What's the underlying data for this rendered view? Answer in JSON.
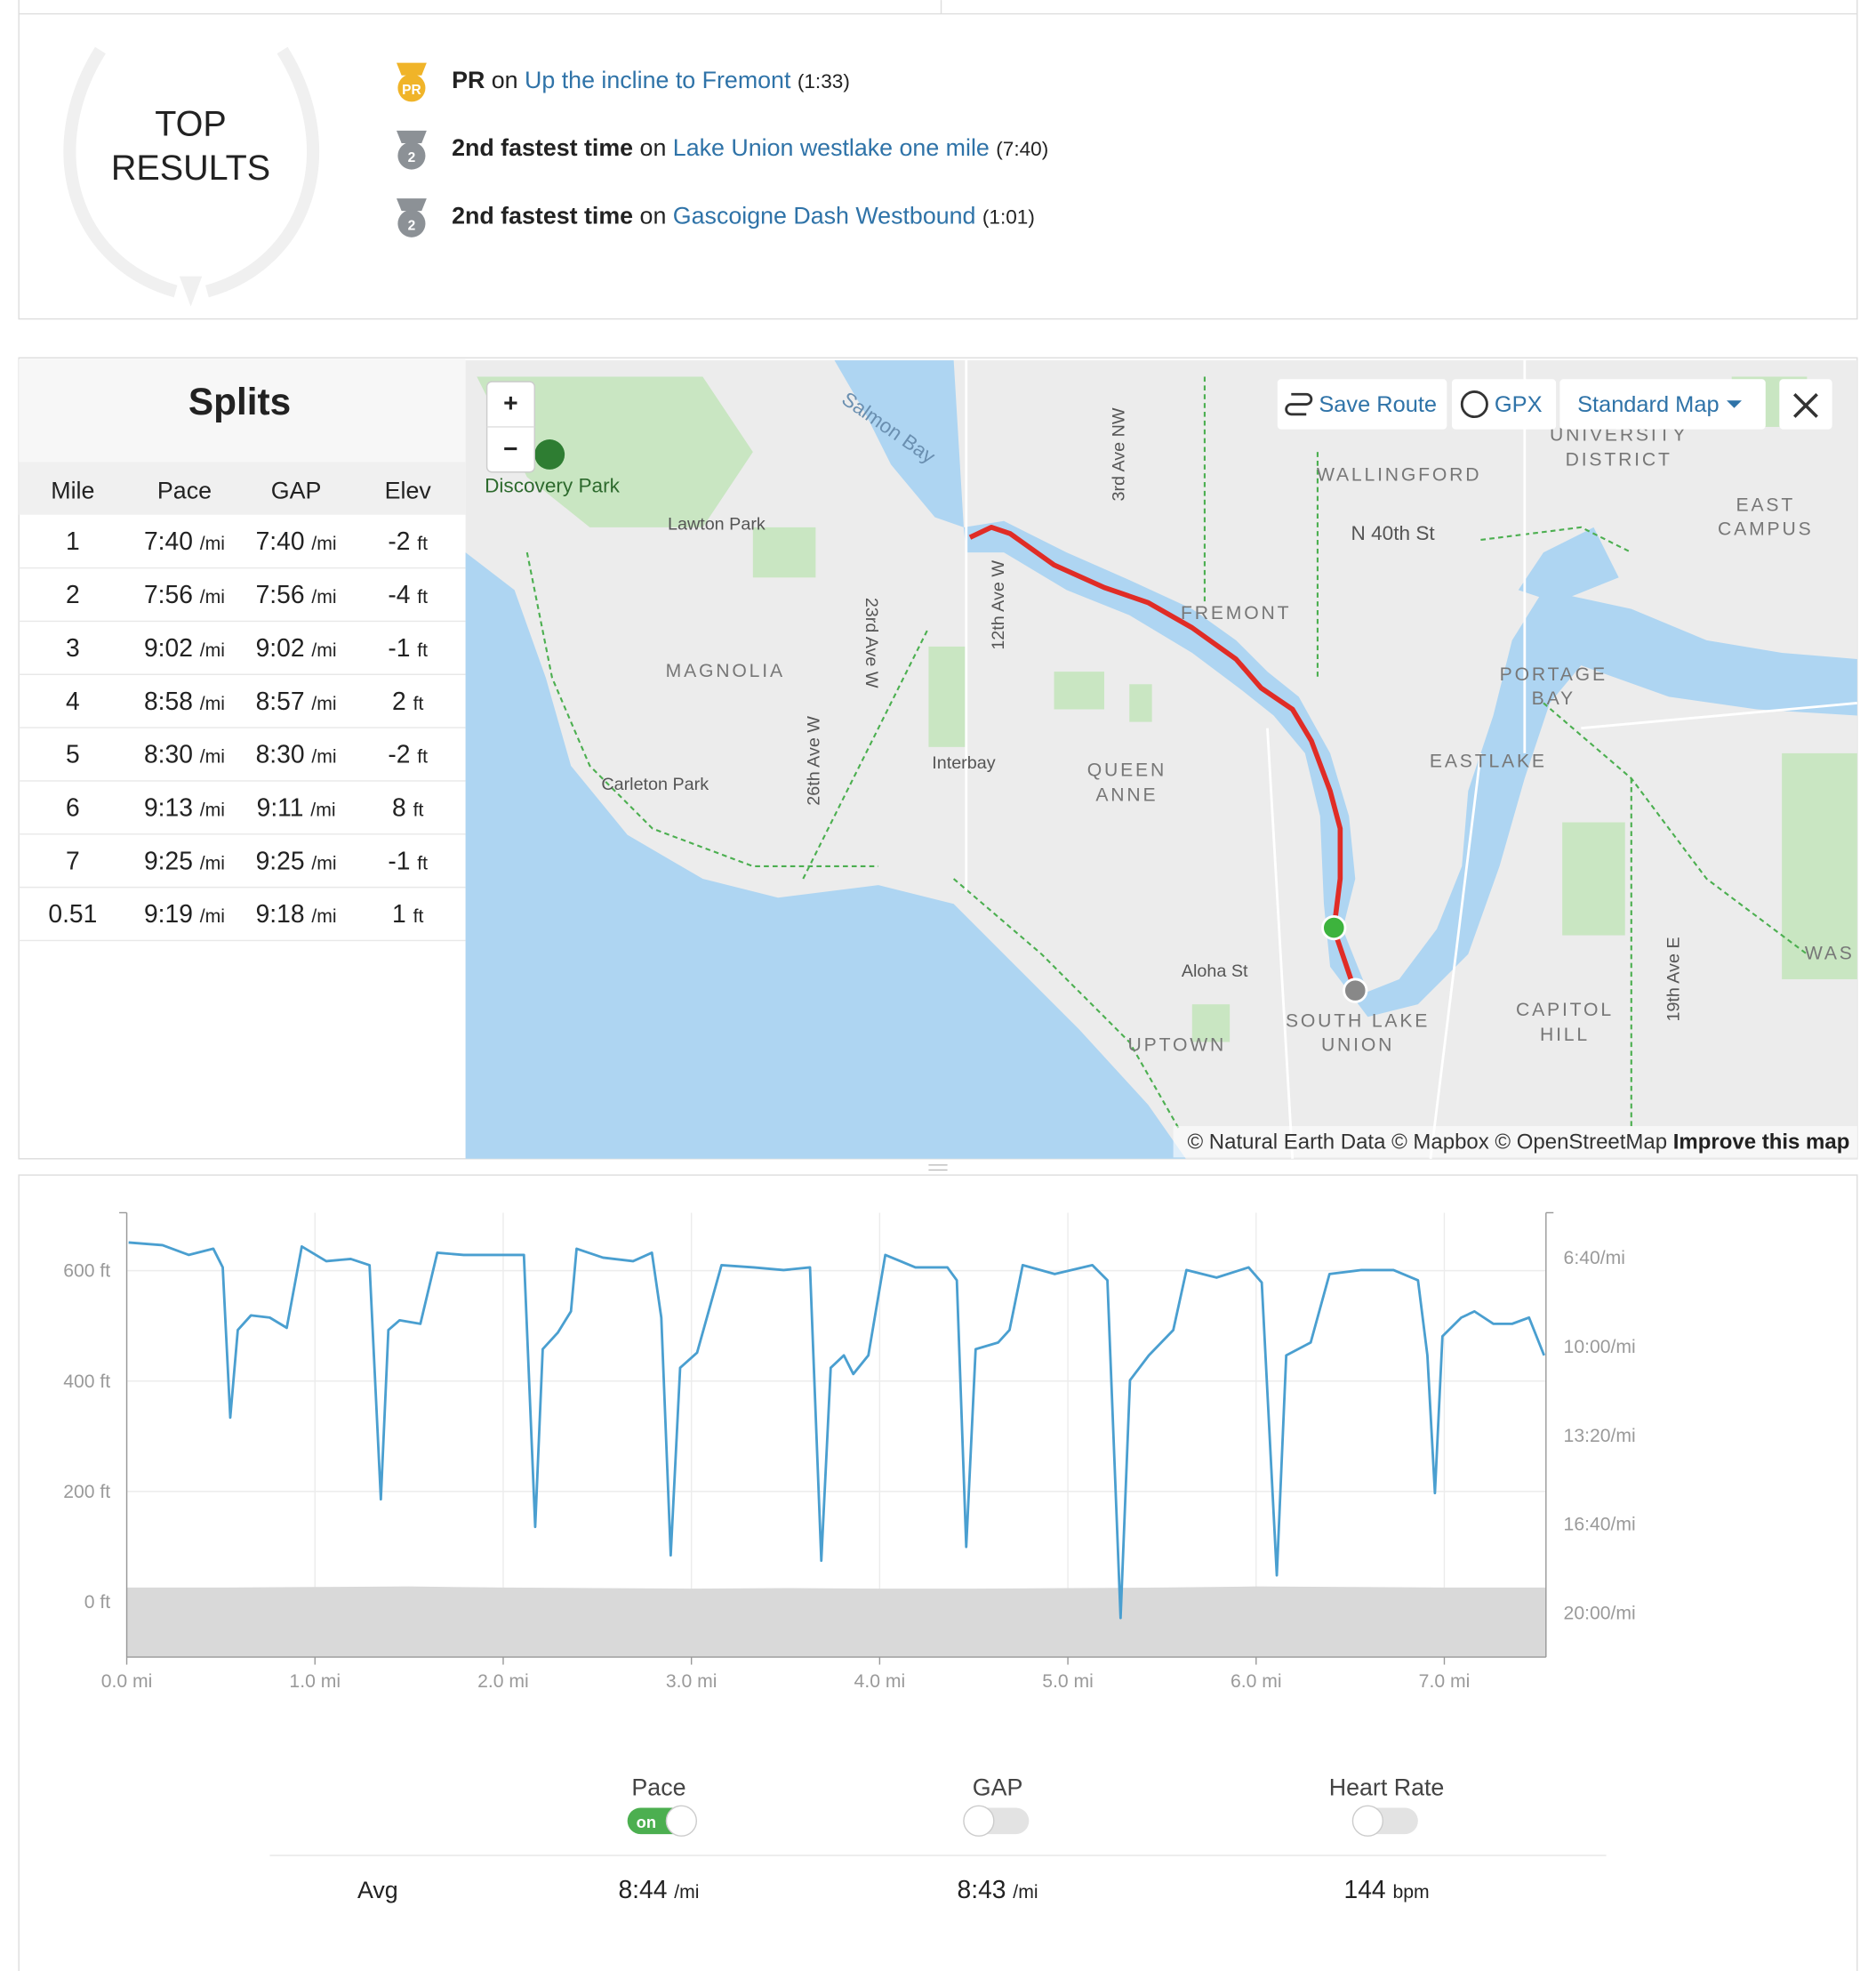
{
  "top_results": {
    "title_lines": [
      "TOP",
      "RESULTS"
    ],
    "items": [
      {
        "badge": "PR",
        "color": "#f0b429",
        "achievement": "PR",
        "connector": "on",
        "segment": "Up the incline to Fremont",
        "time": "(1:33)"
      },
      {
        "badge": "2",
        "color": "#8c9196",
        "achievement": "2nd fastest time",
        "connector": "on",
        "segment": "Lake Union westlake one mile",
        "time": "(7:40)"
      },
      {
        "badge": "2",
        "color": "#8c9196",
        "achievement": "2nd fastest time",
        "connector": "on",
        "segment": "Gascoigne Dash Westbound",
        "time": "(1:01)"
      }
    ]
  },
  "splits": {
    "title": "Splits",
    "columns": [
      "Mile",
      "Pace",
      "GAP",
      "Elev"
    ],
    "pace_unit": "/mi",
    "elev_unit": "ft",
    "rows": [
      {
        "mile": "1",
        "pace": "7:40",
        "gap": "7:40",
        "elev": "-2"
      },
      {
        "mile": "2",
        "pace": "7:56",
        "gap": "7:56",
        "elev": "-4"
      },
      {
        "mile": "3",
        "pace": "9:02",
        "gap": "9:02",
        "elev": "-1"
      },
      {
        "mile": "4",
        "pace": "8:58",
        "gap": "8:57",
        "elev": "2"
      },
      {
        "mile": "5",
        "pace": "8:30",
        "gap": "8:30",
        "elev": "-2"
      },
      {
        "mile": "6",
        "pace": "9:13",
        "gap": "9:11",
        "elev": "8"
      },
      {
        "mile": "7",
        "pace": "9:25",
        "gap": "9:25",
        "elev": "-1"
      },
      {
        "mile": "0.51",
        "pace": "9:19",
        "gap": "9:18",
        "elev": "1"
      }
    ]
  },
  "map": {
    "controls": {
      "zoom_in": "+",
      "zoom_out": "−",
      "save_route": "Save Route",
      "gpx": "GPX",
      "map_style": "Standard Map"
    },
    "labels": [
      "Salmon Bay",
      "Discovery Park",
      "Lawton Park",
      "MAGNOLIA",
      "Carleton Park",
      "23rd Ave W",
      "26th Ave W",
      "12th Ave W",
      "3rd Ave NW",
      "Interbay",
      "QUEEN",
      "ANNE",
      "FREMONT",
      "WALLINGFORD",
      "N 40th St",
      "UNIVERSITY",
      "DISTRICT",
      "EAST",
      "CAMPUS",
      "PORTAGE",
      "BAY",
      "EASTLAKE",
      "Aloha St",
      "SOUTH LAKE",
      "UNION",
      "UPTOWN",
      "CAPITOL",
      "HILL",
      "19th Ave E",
      "WAS"
    ],
    "attribution": "© Natural Earth Data © Mapbox © OpenStreetMap",
    "improve": "Improve this map"
  },
  "chart_data": {
    "type": "line",
    "x": [
      0.01,
      0.19,
      0.33,
      0.46,
      0.51,
      0.55,
      0.59,
      0.66,
      0.76,
      0.85,
      0.93,
      1.06,
      1.19,
      1.29,
      1.35,
      1.39,
      1.45,
      1.56,
      1.65,
      1.79,
      1.96,
      2.11,
      2.17,
      2.21,
      2.29,
      2.36,
      2.39,
      2.53,
      2.69,
      2.79,
      2.84,
      2.89,
      2.94,
      3.03,
      3.16,
      3.33,
      3.49,
      3.63,
      3.69,
      3.74,
      3.81,
      3.86,
      3.94,
      4.03,
      4.19,
      4.36,
      4.41,
      4.46,
      4.51,
      4.63,
      4.69,
      4.76,
      4.93,
      5.13,
      5.21,
      5.28,
      5.33,
      5.43,
      5.56,
      5.63,
      5.79,
      5.96,
      6.03,
      6.11,
      6.16,
      6.29,
      6.39,
      6.56,
      6.73,
      6.86,
      6.91,
      6.95,
      6.99,
      7.09,
      7.16,
      7.26,
      7.36,
      7.45,
      7.53
    ],
    "series": [
      {
        "color": "#4a9fd0",
        "axis": "y2",
        "values": [
          366,
          372,
          394,
          380,
          422,
          760,
          563,
          530,
          535,
          558,
          375,
          408,
          403,
          417,
          944,
          563,
          541,
          549,
          389,
          394,
          394,
          394,
          1006,
          606,
          569,
          521,
          380,
          400,
          408,
          389,
          535,
          1070,
          648,
          614,
          417,
          422,
          428,
          422,
          1082,
          648,
          620,
          662,
          620,
          394,
          422,
          422,
          451,
          1051,
          606,
          591,
          563,
          417,
          437,
          417,
          451,
          1211,
          676,
          620,
          563,
          428,
          445,
          422,
          456,
          1115,
          620,
          591,
          437,
          428,
          428,
          451,
          620,
          930,
          577,
          535,
          521,
          549,
          549,
          535,
          620
        ]
      }
    ],
    "elevation": {
      "color": "#d9d9d9",
      "x": [
        0,
        0.5,
        1,
        1.5,
        2,
        2.5,
        3,
        3.5,
        4,
        4.5,
        5,
        5.5,
        6,
        6.5,
        7,
        7.54
      ],
      "values": [
        26,
        26,
        27,
        28,
        26,
        25,
        24,
        25,
        24,
        24,
        25,
        26,
        28,
        27,
        26,
        26
      ]
    },
    "xlim": [
      0,
      7.54
    ],
    "xticks": [
      {
        "value": 0,
        "label": "0.0 mi"
      },
      {
        "value": 1,
        "label": "1.0 mi"
      },
      {
        "value": 2,
        "label": "2.0 mi"
      },
      {
        "value": 3,
        "label": "3.0 mi"
      },
      {
        "value": 4,
        "label": "4.0 mi"
      },
      {
        "value": 5,
        "label": "5.0 mi"
      },
      {
        "value": 6,
        "label": "6.0 mi"
      },
      {
        "value": 7,
        "label": "7.0 mi"
      }
    ],
    "ylim": [
      -100,
      705
    ],
    "yticks": [
      {
        "value": 0,
        "label": "0 ft"
      },
      {
        "value": 200,
        "label": "200 ft"
      },
      {
        "value": 400,
        "label": "400 ft"
      },
      {
        "value": 600,
        "label": "600 ft"
      }
    ],
    "y2lim": [
      299,
      1299
    ],
    "y2_inverted": true,
    "y2ticks": [
      {
        "value": 400,
        "label": "6:40/mi"
      },
      {
        "value": 600,
        "label": "10:00/mi"
      },
      {
        "value": 800,
        "label": "13:20/mi"
      },
      {
        "value": 1000,
        "label": "16:40/mi"
      },
      {
        "value": 1200,
        "label": "20:00/mi"
      }
    ],
    "grid": true
  },
  "toggles": [
    {
      "name": "Pace",
      "state": "on"
    },
    {
      "name": "GAP"
    },
    {
      "name": "Heart Rate"
    }
  ],
  "averages": {
    "label": "Avg",
    "values": [
      {
        "value": "8:44",
        "unit": "/mi"
      },
      {
        "value": "8:43",
        "unit": "/mi"
      },
      {
        "value": "144",
        "unit": "bpm"
      }
    ]
  }
}
